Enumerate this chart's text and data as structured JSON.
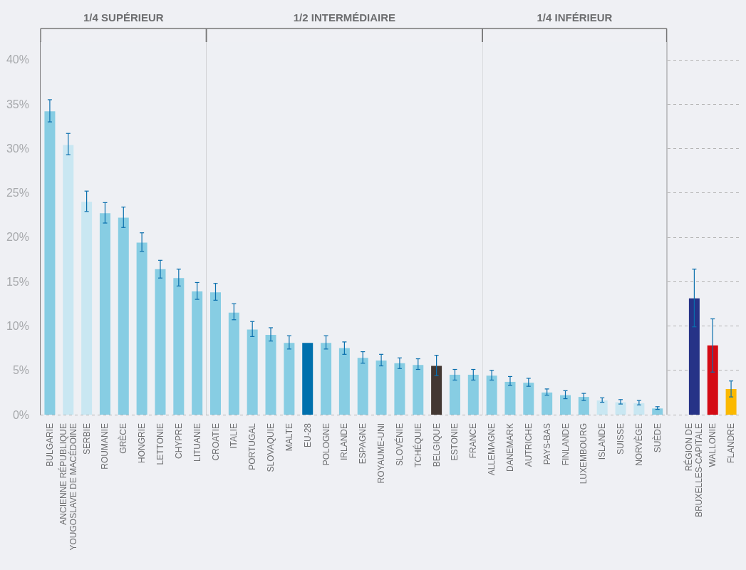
{
  "chart_data": {
    "type": "bar",
    "categories": [
      "BULGARIE",
      "ANCIENNE RÉPUBLIQUE\nYOUGOSLAVE DE MACÉDOINE",
      "SERBIE",
      "ROUMANIE",
      "GRÈCE",
      "HONGRIE",
      "LETTONIE",
      "CHYPRE",
      "LITUANIE",
      "CROATIE",
      "ITALIE",
      "PORTUGAL",
      "SLOVAQUIE",
      "MALTE",
      "EU-28",
      "POLOGNE",
      "IRLANDE",
      "ESPAGNE",
      "ROYAUME-UNI",
      "SLOVÉNIE",
      "TCHÉQUIE",
      "BELGIQUE",
      "ESTONIE",
      "FRANCE",
      "ALLEMAGNE",
      "DANEMARK",
      "AUTRICHE",
      "PAYS-BAS",
      "FINLANDE",
      "LUXEMBOURG",
      "ISLANDE",
      "SUISSE",
      "NORVÈGE",
      "SUÈDE",
      null,
      "RÉGION DE\nBRUXELLES-CAPITALE",
      "WALLONIE",
      "FLANDRE"
    ],
    "values": [
      34.2,
      30.4,
      24.0,
      22.7,
      22.2,
      19.4,
      16.4,
      15.4,
      13.9,
      13.8,
      11.5,
      9.6,
      9.0,
      8.1,
      8.1,
      8.1,
      7.5,
      6.4,
      6.1,
      5.8,
      5.6,
      5.5,
      4.5,
      4.5,
      4.4,
      3.7,
      3.6,
      2.5,
      2.2,
      2.0,
      1.6,
      1.4,
      1.3,
      0.7,
      null,
      13.1,
      7.8,
      2.9
    ],
    "colors": [
      "#87cde3",
      "#c9e7f2",
      "#c9e7f2",
      "#87cde3",
      "#87cde3",
      "#87cde3",
      "#87cde3",
      "#87cde3",
      "#87cde3",
      "#87cde3",
      "#87cde3",
      "#87cde3",
      "#87cde3",
      "#87cde3",
      "#0070ad",
      "#87cde3",
      "#87cde3",
      "#87cde3",
      "#87cde3",
      "#87cde3",
      "#87cde3",
      "#433833",
      "#87cde3",
      "#87cde3",
      "#87cde3",
      "#87cde3",
      "#87cde3",
      "#87cde3",
      "#87cde3",
      "#87cde3",
      "#c9e7f2",
      "#c9e7f2",
      "#c9e7f2",
      "#87cde3",
      null,
      "#263387",
      "#d40a14",
      "#fbb900"
    ],
    "errors": [
      [
        33.0,
        35.5
      ],
      [
        29.3,
        31.7
      ],
      [
        22.9,
        25.2
      ],
      [
        21.6,
        23.9
      ],
      [
        21.1,
        23.4
      ],
      [
        18.4,
        20.5
      ],
      [
        15.4,
        17.4
      ],
      [
        14.5,
        16.4
      ],
      [
        13.0,
        14.9
      ],
      [
        12.9,
        14.8
      ],
      [
        10.7,
        12.5
      ],
      [
        8.8,
        10.5
      ],
      [
        8.3,
        9.8
      ],
      [
        7.4,
        8.9
      ],
      null,
      [
        7.4,
        8.9
      ],
      [
        6.8,
        8.2
      ],
      [
        5.8,
        7.1
      ],
      [
        5.5,
        6.8
      ],
      [
        5.2,
        6.4
      ],
      [
        5.1,
        6.3
      ],
      [
        4.4,
        6.7
      ],
      [
        3.9,
        5.1
      ],
      [
        3.9,
        5.1
      ],
      [
        3.9,
        5.0
      ],
      [
        3.3,
        4.3
      ],
      [
        3.2,
        4.1
      ],
      [
        2.2,
        2.9
      ],
      [
        1.8,
        2.7
      ],
      [
        1.6,
        2.4
      ],
      [
        1.4,
        1.9
      ],
      [
        1.2,
        1.7
      ],
      [
        1.1,
        1.6
      ],
      [
        0.6,
        0.9
      ],
      null,
      [
        9.9,
        16.4
      ],
      [
        4.8,
        10.8
      ],
      [
        2.0,
        3.8
      ]
    ],
    "ylim": [
      0,
      42
    ],
    "yticks": [
      {
        "value": 0,
        "label": "0%"
      },
      {
        "value": 5,
        "label": "5%"
      },
      {
        "value": 10,
        "label": "10%"
      },
      {
        "value": 15,
        "label": "15%"
      },
      {
        "value": 20,
        "label": "20%"
      },
      {
        "value": 25,
        "label": "25%"
      },
      {
        "value": 30,
        "label": "30%"
      },
      {
        "value": 35,
        "label": "35%"
      },
      {
        "value": 40,
        "label": "40%"
      }
    ],
    "bands": [
      {
        "axis": "x",
        "from": "BULGARIE",
        "to": "LITUANIE",
        "label": "1/4 SUPÉRIEUR"
      },
      {
        "axis": "x",
        "from": "CROATIE",
        "to": "FRANCE",
        "label": "1/2 INTERMÉDIAIRE"
      },
      {
        "axis": "x",
        "from": "ALLEMAGNE",
        "to": "SUÈDE",
        "label": "1/4 INFÉRIEUR"
      }
    ],
    "grid": "y"
  }
}
